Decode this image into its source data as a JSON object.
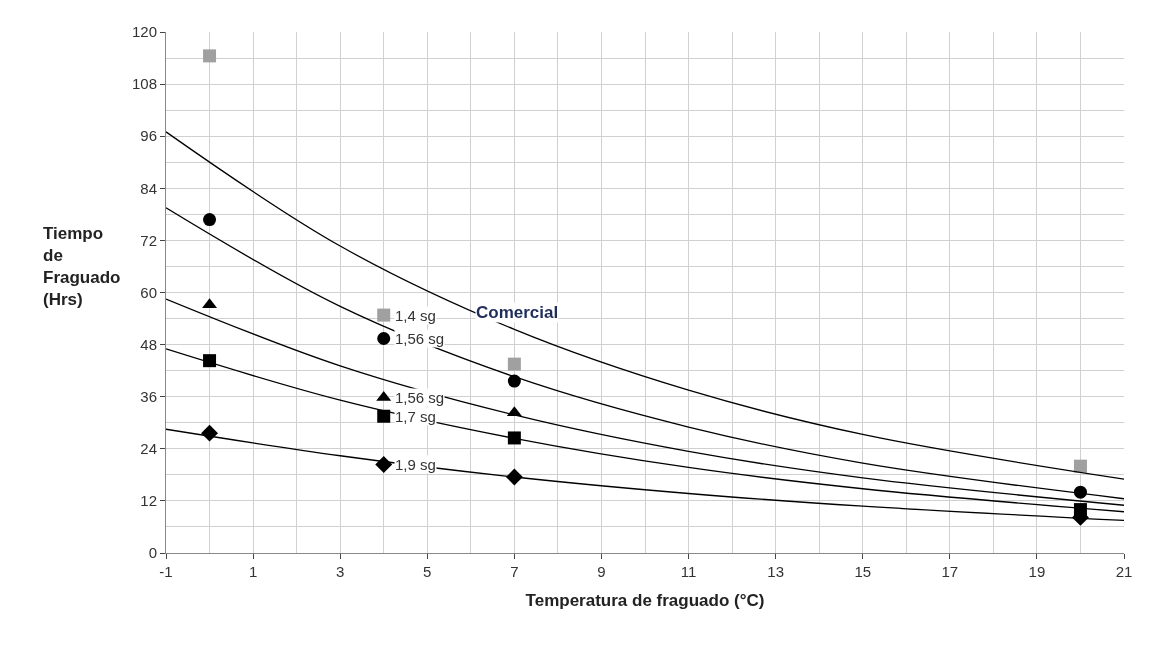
{
  "chart_data": {
    "type": "scatter",
    "xlabel": "Temperatura de fraguado (°C)",
    "ylabel": "Tiempo de Fraguado (Hrs)",
    "xlim": [
      -1,
      21
    ],
    "xticks": [
      -1,
      1,
      3,
      5,
      7,
      9,
      11,
      13,
      15,
      17,
      19,
      21
    ],
    "ylim": [
      0,
      120
    ],
    "yticks": [
      0,
      12,
      24,
      36,
      48,
      60,
      72,
      84,
      96,
      108,
      120
    ],
    "grid": true,
    "series": [
      {
        "name": "1,4 sg",
        "color": "#a0a0a0",
        "marker": "square",
        "x": [
          0,
          4,
          7,
          20
        ],
        "values": [
          114.5,
          54.8,
          43.5,
          20
        ]
      },
      {
        "name": "1,56 sg",
        "color": "#000000",
        "marker": "circle",
        "x": [
          0,
          4,
          7,
          20
        ],
        "values": [
          76.8,
          49.4,
          39.6,
          14
        ]
      },
      {
        "name": "1,56 sg",
        "color": "#000000",
        "marker": "triangle",
        "x": [
          0,
          4,
          7
        ],
        "values": [
          57.2,
          35.8,
          32.3
        ]
      },
      {
        "name": "1,7 sg",
        "color": "#000000",
        "marker": "square",
        "x": [
          0,
          4,
          7,
          20
        ],
        "values": [
          44.3,
          31.5,
          26.5,
          10
        ]
      },
      {
        "name": "1,9 sg",
        "color": "#000000",
        "marker": "diamond",
        "x": [
          0,
          4,
          7,
          20
        ],
        "values": [
          27.6,
          20.4,
          17.5,
          8.2
        ]
      },
      {
        "type": "line",
        "color": "#000000",
        "marker": "none",
        "x": [
          -1,
          3,
          7,
          11,
          15,
          21
        ],
        "values": [
          97,
          70.7,
          51.5,
          37.5,
          27.3,
          17
        ]
      },
      {
        "type": "line",
        "color": "#000000",
        "marker": "none",
        "x": [
          -1,
          3,
          7,
          11,
          15,
          21
        ],
        "values": [
          79.5,
          56.8,
          40.6,
          29,
          20.7,
          12.5
        ]
      },
      {
        "type": "line",
        "color": "#000000",
        "marker": "none",
        "x": [
          -1,
          3,
          7,
          11,
          15,
          21
        ],
        "values": [
          58.5,
          43.1,
          31.8,
          23.4,
          17.3,
          11
        ]
      },
      {
        "type": "line",
        "color": "#000000",
        "marker": "none",
        "x": [
          -1,
          3,
          7,
          11,
          15,
          21
        ],
        "values": [
          47,
          35.2,
          26.4,
          19.7,
          14.8,
          9.5
        ]
      },
      {
        "type": "line",
        "color": "#000000",
        "marker": "none",
        "x": [
          -1,
          3,
          7,
          11,
          15,
          21
        ],
        "values": [
          28.5,
          22.4,
          17.5,
          13.7,
          10.8,
          7.5
        ]
      }
    ],
    "annotations": [
      "Comercial"
    ]
  }
}
